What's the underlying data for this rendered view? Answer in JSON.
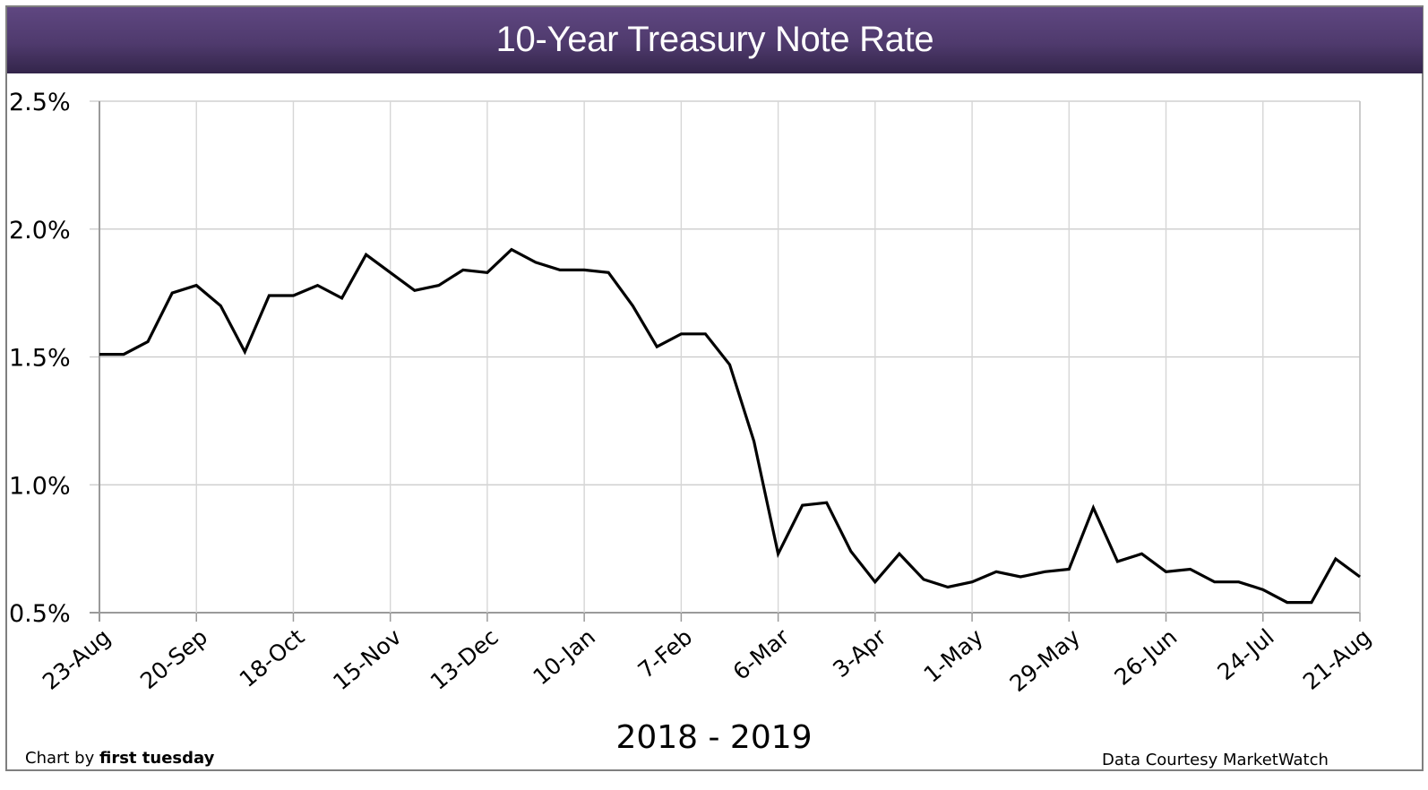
{
  "header": {
    "title": "10-Year Treasury Note Rate",
    "background_top": "#5f4781",
    "background_bottom": "#33254a"
  },
  "footer": {
    "credit_prefix": "Chart by ",
    "credit_brand": "first tuesday",
    "source": "Data Courtesy MarketWatch"
  },
  "chart_data": {
    "type": "line",
    "title": "10-Year Treasury Note Rate",
    "xlabel": "2018 - 2019",
    "ylabel": "",
    "ylim": [
      0.5,
      2.5
    ],
    "yticks": [
      "2.5%",
      "2.0%",
      "1.5%",
      "1.0%",
      "0.5%"
    ],
    "xtick_labels": [
      "23-Aug",
      "20-Sep",
      "18-Oct",
      "15-Nov",
      "13-Dec",
      "10-Jan",
      "7-Feb",
      "6-Mar",
      "3-Apr",
      "1-May",
      "29-May",
      "26-Jun",
      "24-Jul",
      "21-Aug"
    ],
    "grid": true,
    "legend": "none",
    "line_color": "#000000",
    "series": [
      {
        "name": "10-Year Treasury Note Rate (%)",
        "values": [
          1.51,
          1.51,
          1.56,
          1.75,
          1.78,
          1.7,
          1.52,
          1.74,
          1.74,
          1.78,
          1.73,
          1.9,
          1.83,
          1.76,
          1.78,
          1.84,
          1.83,
          1.92,
          1.87,
          1.84,
          1.84,
          1.83,
          1.7,
          1.54,
          1.59,
          1.59,
          1.47,
          1.17,
          0.73,
          0.92,
          0.93,
          0.74,
          0.62,
          0.73,
          0.63,
          0.6,
          0.62,
          0.66,
          0.64,
          0.66,
          0.67,
          0.91,
          0.7,
          0.73,
          0.66,
          0.67,
          0.62,
          0.62,
          0.59,
          0.54,
          0.54,
          0.71,
          0.64
        ]
      }
    ],
    "annotations": [
      "Chart by first tuesday",
      "Data Courtesy MarketWatch"
    ]
  }
}
